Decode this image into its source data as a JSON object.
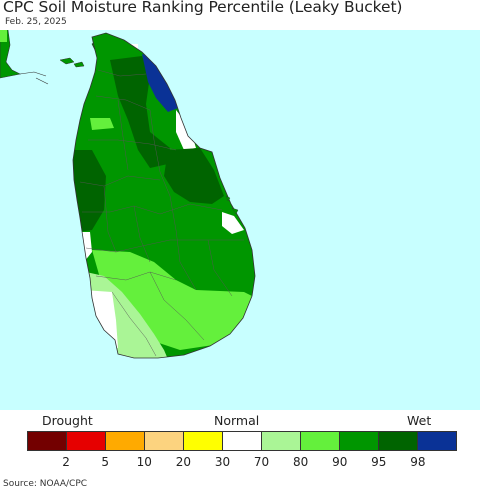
{
  "header": {
    "title": "CPC Soil Moisture Ranking Percentile (Leaky Bucket)",
    "date": "Feb. 25, 2025"
  },
  "legend": {
    "label_drought": "Drought",
    "label_normal": "Normal",
    "label_wet": "Wet",
    "colors": [
      "#730000",
      "#e60000",
      "#ffaa00",
      "#fcd37f",
      "#ffff00",
      "#ffffff",
      "#aaf596",
      "#64f03c",
      "#009600",
      "#006400",
      "#0a3296"
    ],
    "ticks": [
      "2",
      "5",
      "10",
      "20",
      "30",
      "70",
      "80",
      "90",
      "95",
      "98"
    ]
  },
  "map": {
    "ocean_color": "#c8ffff",
    "land_border_color": "#333333"
  },
  "footer": {
    "source": "Source: NOAA/CPC"
  }
}
